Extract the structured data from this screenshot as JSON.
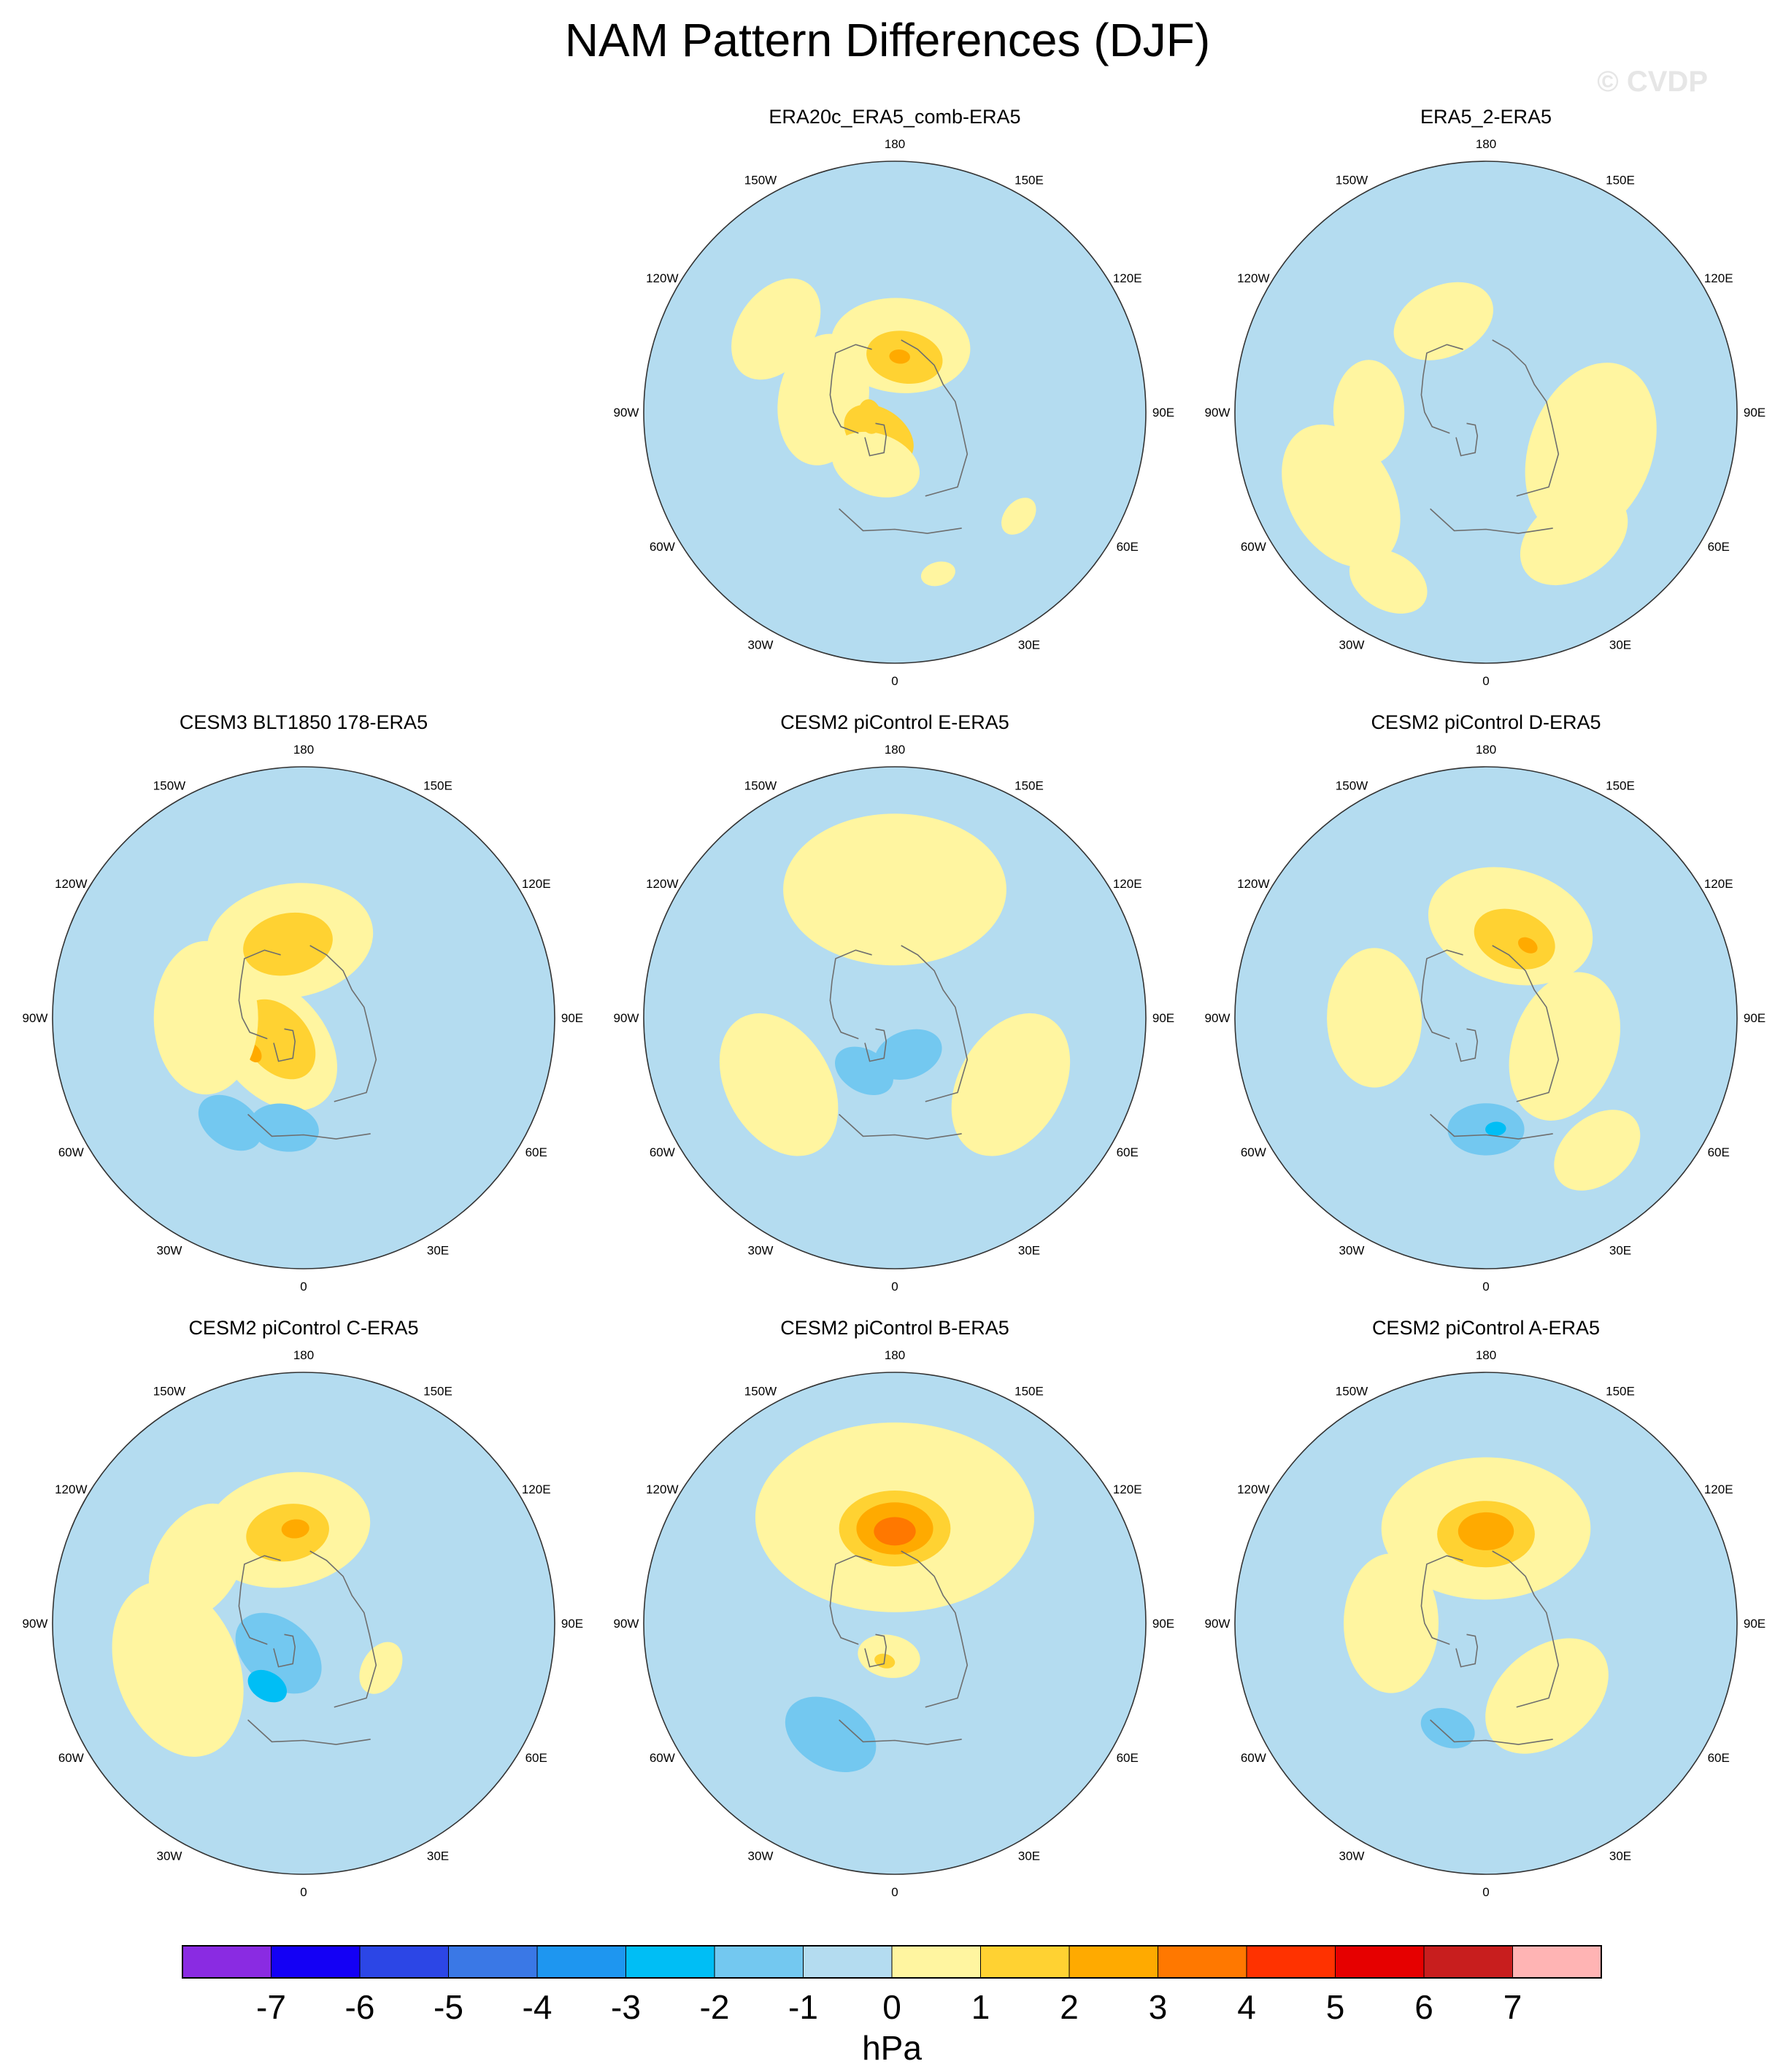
{
  "title": "NAM Pattern Differences (DJF)",
  "watermark": "© CVDP",
  "units": "hPa",
  "chart_data": {
    "type": "heatmap",
    "projection": "north polar stereographic",
    "title": "NAM Pattern Differences (DJF)",
    "colorbar": {
      "label": "hPa",
      "levels": [
        -7,
        -6,
        -5,
        -4,
        -3,
        -2,
        -1,
        0,
        1,
        2,
        3,
        4,
        5,
        6,
        7
      ],
      "tick_labels": [
        "-7",
        "-6",
        "-5",
        "-4",
        "-3",
        "-2",
        "-1",
        "0",
        "1",
        "2",
        "3",
        "4",
        "5",
        "6",
        "7"
      ],
      "colors": [
        "#8a2be2",
        "#1400f5",
        "#2c46e6",
        "#3a78e6",
        "#1e96f0",
        "#00bef5",
        "#73c8f0",
        "#b4dcf0",
        "#fff5a0",
        "#ffd232",
        "#ffaa00",
        "#ff7800",
        "#ff3200",
        "#e60000",
        "#c81e1e",
        "#ffb4b4"
      ]
    },
    "longitude_labels": [
      "180",
      "150E",
      "120E",
      "90E",
      "60E",
      "30E",
      "0",
      "30W",
      "60W",
      "90W",
      "120W",
      "150W"
    ],
    "panels": [
      {
        "name": "ERA20c_ERA5_comb-ERA5",
        "blobs": [
          {
            "lon": 175,
            "colat": 24,
            "r": 20,
            "v": 0.6
          },
          {
            "lon": 170,
            "colat": 20,
            "r": 11,
            "v": 1.4
          },
          {
            "lon": 175,
            "colat": 20,
            "r": 3,
            "v": 2.5
          },
          {
            "lon": 260,
            "colat": 26,
            "r": 19,
            "v": 0.6
          },
          {
            "lon": 325,
            "colat": 10,
            "r": 11,
            "v": 1.3
          },
          {
            "lon": 340,
            "colat": 20,
            "r": 13,
            "v": 0.6
          },
          {
            "lon": 280,
            "colat": 9,
            "r": 5,
            "v": 1.2
          },
          {
            "lon": 235,
            "colat": 52,
            "r": 16,
            "v": 0.6
          },
          {
            "lon": 15,
            "colat": 60,
            "r": 5,
            "v": 0.6
          },
          {
            "lon": 50,
            "colat": 58,
            "r": 6,
            "v": 0.6
          }
        ]
      },
      {
        "name": "ERA5_2-ERA5",
        "blobs": [
          {
            "lon": 205,
            "colat": 36,
            "r": 15,
            "v": 0.6
          },
          {
            "lon": 70,
            "colat": 40,
            "r": 26,
            "v": 0.6
          },
          {
            "lon": 35,
            "colat": 55,
            "r": 17,
            "v": 0.6
          },
          {
            "lon": 270,
            "colat": 42,
            "r": 15,
            "v": 0.6
          },
          {
            "lon": 300,
            "colat": 60,
            "r": 22,
            "v": 0.6
          },
          {
            "lon": 330,
            "colat": 70,
            "r": 12,
            "v": 0.6
          }
        ]
      },
      {
        "name": "CESM3 BLT1850 178-ERA5",
        "blobs": [
          {
            "lon": 190,
            "colat": 28,
            "r": 24,
            "v": 0.6
          },
          {
            "lon": 192,
            "colat": 27,
            "r": 13,
            "v": 1.4
          },
          {
            "lon": 310,
            "colat": 14,
            "r": 22,
            "v": 0.6
          },
          {
            "lon": 310,
            "colat": 12,
            "r": 13,
            "v": 1.4
          },
          {
            "lon": 305,
            "colat": 22,
            "r": 3,
            "v": 2.5
          },
          {
            "lon": 270,
            "colat": 35,
            "r": 22,
            "v": 0.6
          },
          {
            "lon": 350,
            "colat": 40,
            "r": 10,
            "v": -1.5
          },
          {
            "lon": 325,
            "colat": 46,
            "r": 10,
            "v": -1.5
          }
        ]
      },
      {
        "name": "CESM2 piControl E-ERA5",
        "blobs": [
          {
            "lon": 180,
            "colat": 46,
            "r": 32,
            "v": 0.6
          },
          {
            "lon": 60,
            "colat": 48,
            "r": 22,
            "v": 0.6
          },
          {
            "lon": 300,
            "colat": 48,
            "r": 22,
            "v": 0.6
          },
          {
            "lon": 20,
            "colat": 14,
            "r": 10,
            "v": -1.5
          },
          {
            "lon": 330,
            "colat": 22,
            "r": 9,
            "v": -1.5
          }
        ]
      },
      {
        "name": "CESM2 piControl D-ERA5",
        "blobs": [
          {
            "lon": 165,
            "colat": 34,
            "r": 24,
            "v": 0.6
          },
          {
            "lon": 160,
            "colat": 30,
            "r": 12,
            "v": 1.4
          },
          {
            "lon": 150,
            "colat": 30,
            "r": 3,
            "v": 2.5
          },
          {
            "lon": 70,
            "colat": 30,
            "r": 22,
            "v": 0.6
          },
          {
            "lon": 270,
            "colat": 40,
            "r": 20,
            "v": 0.6
          },
          {
            "lon": 40,
            "colat": 62,
            "r": 14,
            "v": 0.6
          },
          {
            "lon": 0,
            "colat": 40,
            "r": 11,
            "v": -1.5
          },
          {
            "lon": 5,
            "colat": 40,
            "r": 3,
            "v": -2.5
          }
        ]
      },
      {
        "name": "CESM2 piControl C-ERA5",
        "blobs": [
          {
            "lon": 190,
            "colat": 34,
            "r": 24,
            "v": 0.6
          },
          {
            "lon": 190,
            "colat": 33,
            "r": 12,
            "v": 1.4
          },
          {
            "lon": 185,
            "colat": 34,
            "r": 4,
            "v": 2.5
          },
          {
            "lon": 290,
            "colat": 48,
            "r": 26,
            "v": 0.6
          },
          {
            "lon": 240,
            "colat": 44,
            "r": 18,
            "v": 0.6
          },
          {
            "lon": 60,
            "colat": 32,
            "r": 8,
            "v": 0.6
          },
          {
            "lon": 320,
            "colat": 14,
            "r": 14,
            "v": -1.5
          },
          {
            "lon": 330,
            "colat": 26,
            "r": 6,
            "v": -2.5
          }
        ]
      },
      {
        "name": "CESM2 piControl B-ERA5",
        "blobs": [
          {
            "lon": 180,
            "colat": 38,
            "r": 40,
            "v": 0.6
          },
          {
            "lon": 180,
            "colat": 34,
            "r": 16,
            "v": 1.4
          },
          {
            "lon": 180,
            "colat": 34,
            "r": 11,
            "v": 2.4
          },
          {
            "lon": 180,
            "colat": 33,
            "r": 6,
            "v": 3.4
          },
          {
            "lon": 350,
            "colat": 12,
            "r": 9,
            "v": 0.6
          },
          {
            "lon": 345,
            "colat": 14,
            "r": 3,
            "v": 1.4
          },
          {
            "lon": 330,
            "colat": 46,
            "r": 14,
            "v": -1.5
          }
        ]
      },
      {
        "name": "CESM2 piControl A-ERA5",
        "blobs": [
          {
            "lon": 180,
            "colat": 34,
            "r": 30,
            "v": 0.6
          },
          {
            "lon": 180,
            "colat": 32,
            "r": 14,
            "v": 1.4
          },
          {
            "lon": 180,
            "colat": 33,
            "r": 8,
            "v": 2.4
          },
          {
            "lon": 270,
            "colat": 34,
            "r": 20,
            "v": 0.6
          },
          {
            "lon": 40,
            "colat": 34,
            "r": 20,
            "v": 0.6
          },
          {
            "lon": 340,
            "colat": 40,
            "r": 8,
            "v": -1.5
          }
        ]
      }
    ]
  }
}
